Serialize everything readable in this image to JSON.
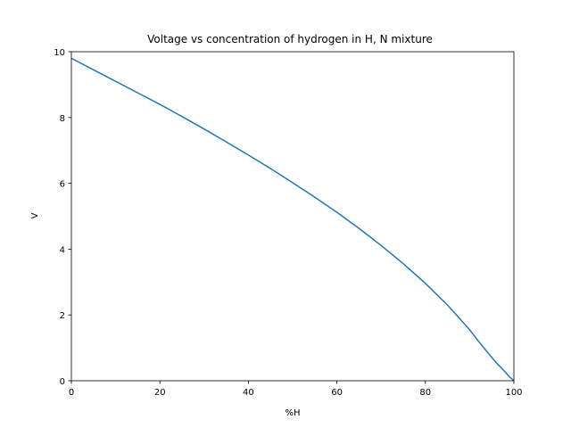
{
  "chart_data": {
    "type": "line",
    "title": "Voltage vs concentration of hydrogen in H, N mixture",
    "xlabel": "%H",
    "ylabel": "V",
    "xlim": [
      0,
      100
    ],
    "ylim": [
      0,
      10
    ],
    "xticks": [
      0,
      20,
      40,
      60,
      80,
      100
    ],
    "yticks": [
      0,
      2,
      4,
      6,
      8,
      10
    ],
    "grid": false,
    "line_color": "#1f77b4",
    "series": [
      {
        "x": [
          0,
          5,
          10,
          15,
          20,
          25,
          30,
          35,
          40,
          45,
          50,
          55,
          60,
          65,
          70,
          75,
          80,
          85,
          90,
          92,
          94,
          96,
          98,
          99,
          100
        ],
        "y": [
          9.8,
          9.45,
          9.1,
          8.75,
          8.4,
          8.03,
          7.65,
          7.26,
          6.86,
          6.45,
          6.02,
          5.58,
          5.12,
          4.63,
          4.11,
          3.56,
          2.96,
          2.3,
          1.55,
          1.2,
          0.87,
          0.55,
          0.27,
          0.12,
          0.0
        ]
      }
    ]
  }
}
